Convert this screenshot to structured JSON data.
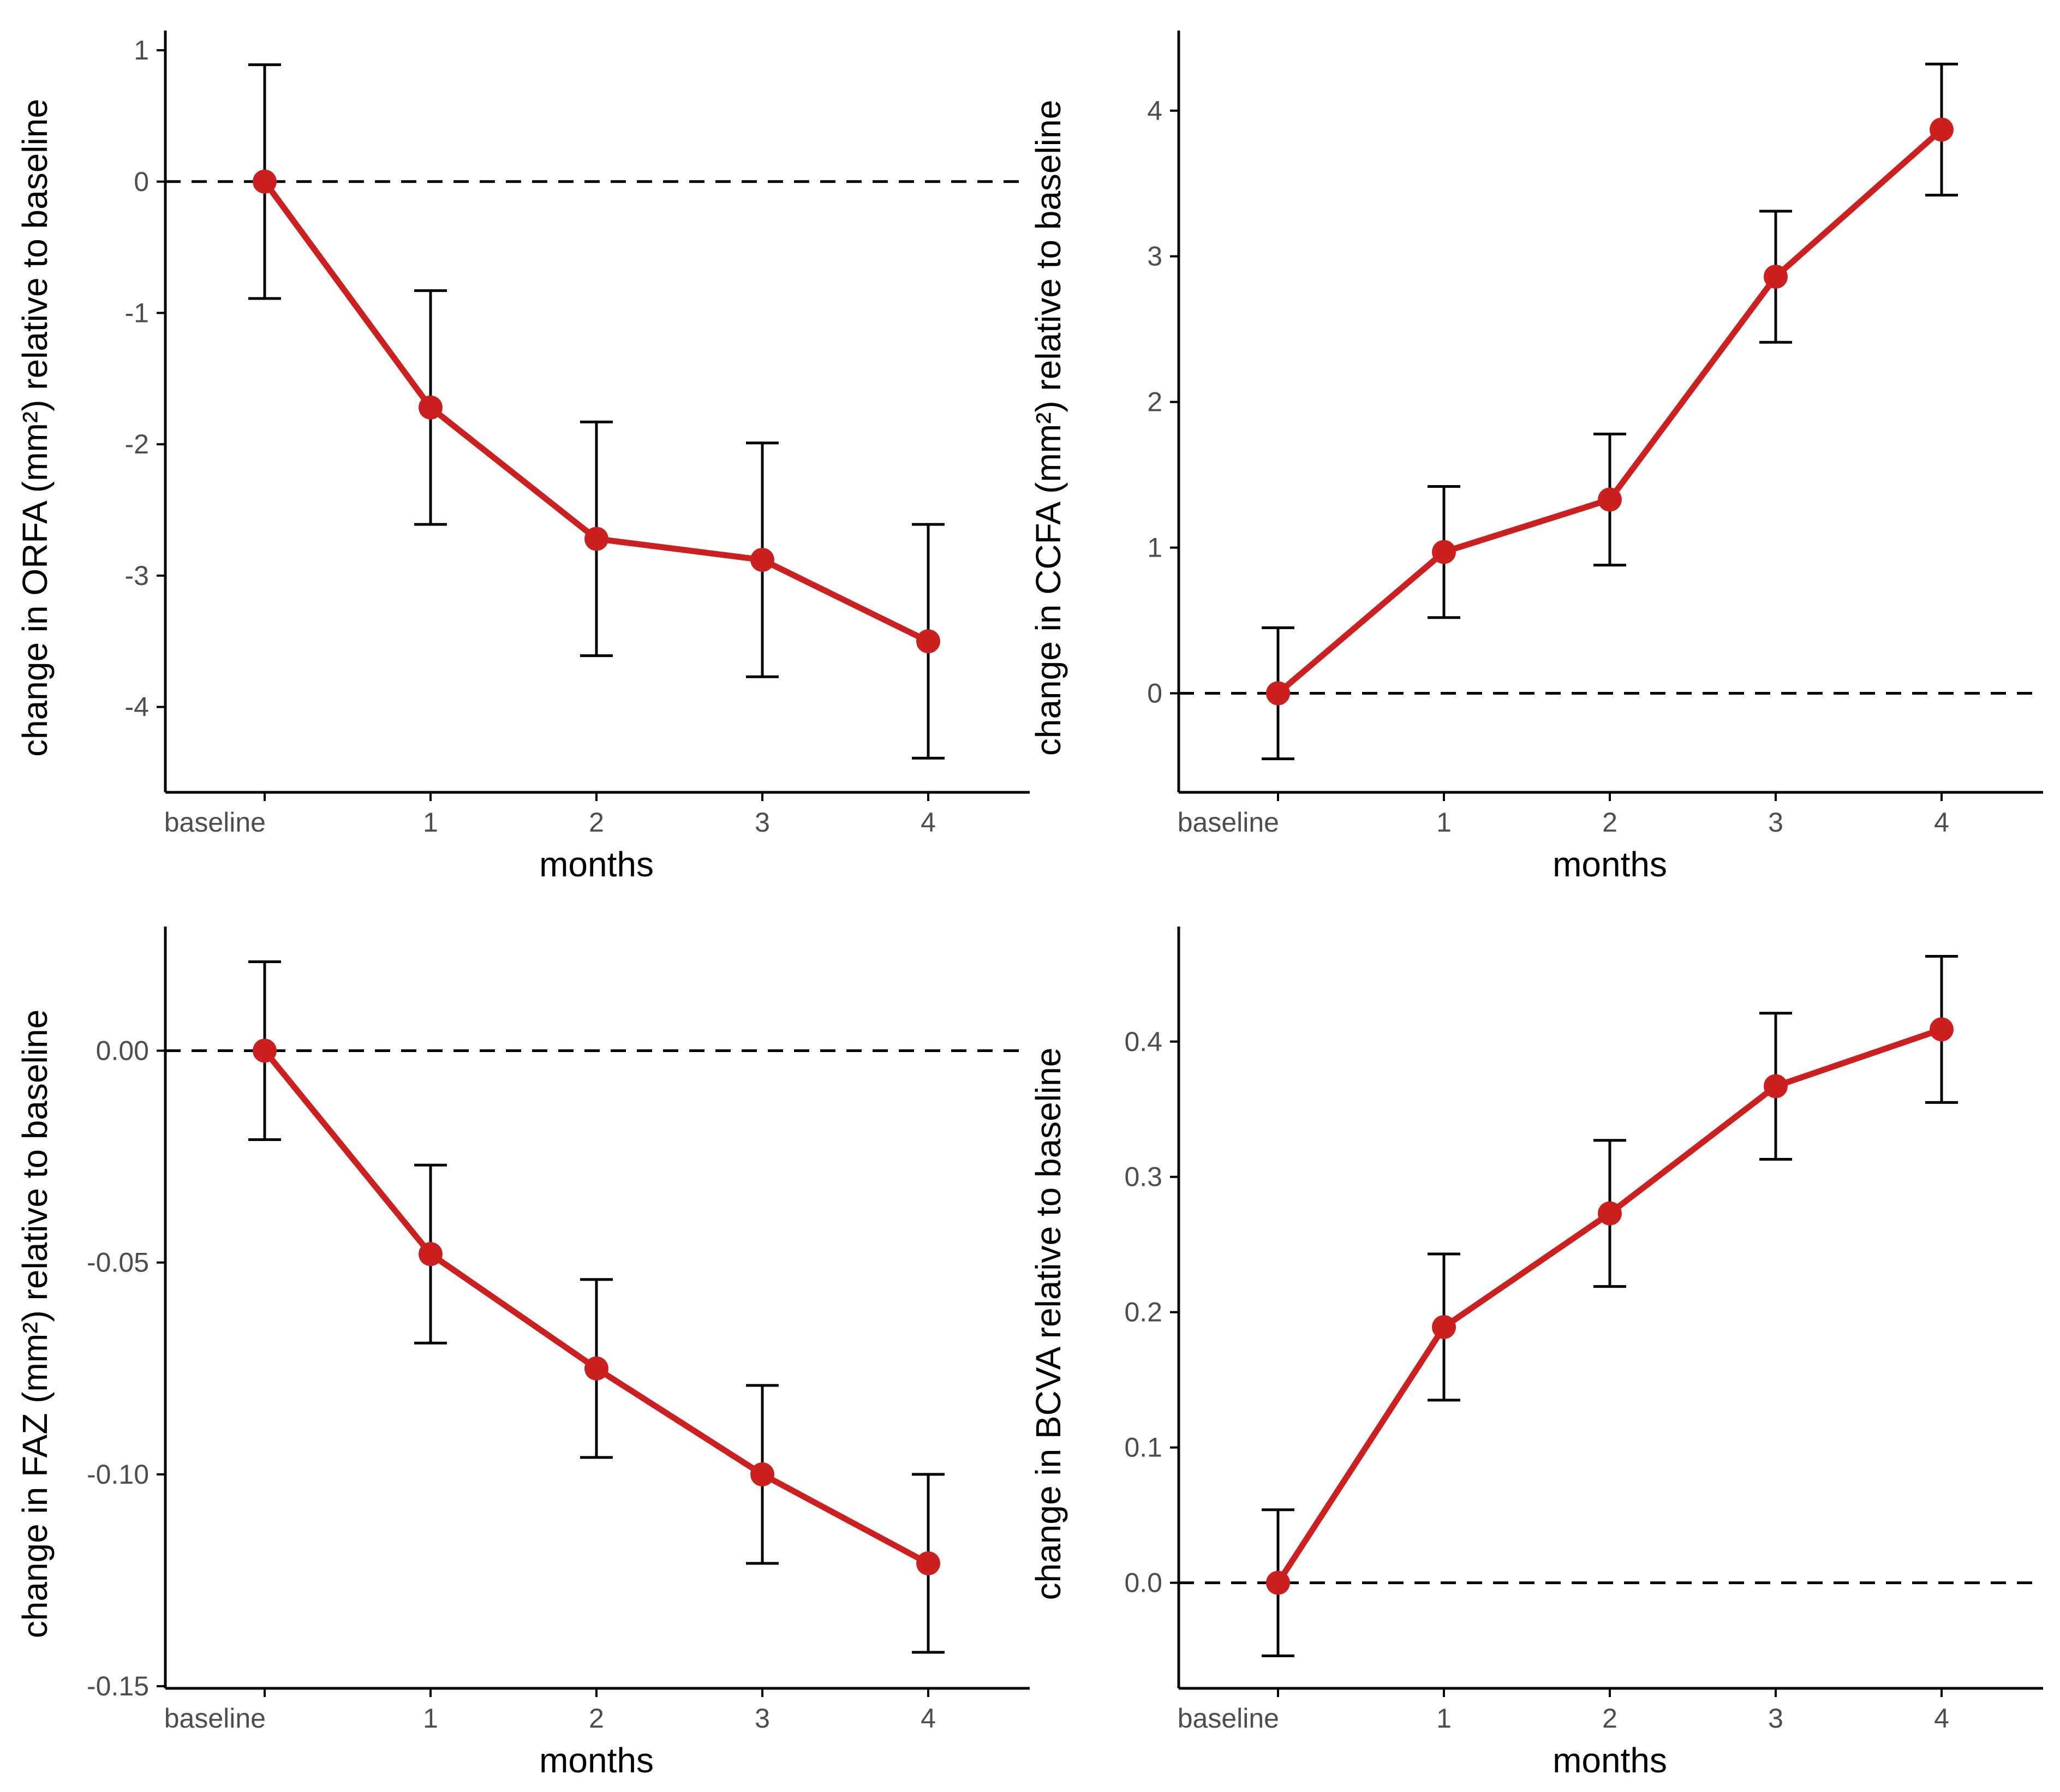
{
  "colors": {
    "line": "#cc1f1f",
    "point": "#cc1f1f",
    "errorbar": "#000000",
    "axis": "#000000",
    "reference": "#000000"
  },
  "chart_data": [
    {
      "type": "line",
      "xlabel": "months",
      "ylabel": "change in ORFA (mm²) relative to baseline",
      "categories": [
        "baseline",
        "1",
        "2",
        "3",
        "4"
      ],
      "ylim": [
        -4.65,
        1.15
      ],
      "yticks": [
        1,
        0,
        -1,
        -2,
        -3,
        -4
      ],
      "ytick_labels": [
        "1",
        "0",
        "-1",
        "-2",
        "-3",
        "-4"
      ],
      "reference_y": 0,
      "series": [
        {
          "name": "ORFA",
          "values": [
            0,
            -1.72,
            -2.72,
            -2.88,
            -3.5
          ],
          "lower": [
            -0.89,
            -2.61,
            -3.61,
            -3.77,
            -4.39
          ],
          "upper": [
            0.89,
            -0.83,
            -1.83,
            -1.99,
            -2.61
          ]
        }
      ]
    },
    {
      "type": "line",
      "xlabel": "months",
      "ylabel": "change in CCFA (mm²) relative to baseline",
      "categories": [
        "baseline",
        "1",
        "2",
        "3",
        "4"
      ],
      "ylim": [
        -0.68,
        4.55
      ],
      "yticks": [
        4,
        3,
        2,
        1,
        0
      ],
      "ytick_labels": [
        "4",
        "3",
        "2",
        "1",
        "0"
      ],
      "reference_y": 0,
      "series": [
        {
          "name": "CCFA",
          "values": [
            0,
            0.97,
            1.33,
            2.86,
            3.87
          ],
          "lower": [
            -0.45,
            0.52,
            0.88,
            2.41,
            3.42
          ],
          "upper": [
            0.45,
            1.42,
            1.78,
            3.31,
            4.32
          ]
        }
      ]
    },
    {
      "type": "line",
      "xlabel": "months",
      "ylabel": "change in FAZ (mm²) relative to baseline",
      "categories": [
        "baseline",
        "1",
        "2",
        "3",
        "4"
      ],
      "ylim": [
        -0.1505,
        0.0293
      ],
      "yticks": [
        0,
        -0.05,
        -0.1,
        -0.15
      ],
      "ytick_labels": [
        "0.00",
        "-0.05",
        "-0.10",
        "-0.15"
      ],
      "reference_y": 0,
      "series": [
        {
          "name": "FAZ",
          "values": [
            0,
            -0.048,
            -0.075,
            -0.1,
            -0.121
          ],
          "lower": [
            -0.021,
            -0.069,
            -0.096,
            -0.121,
            -0.142
          ],
          "upper": [
            0.021,
            -0.027,
            -0.054,
            -0.079,
            -0.1
          ]
        }
      ]
    },
    {
      "type": "line",
      "xlabel": "months",
      "ylabel": "change in BCVA relative to baseline",
      "categories": [
        "baseline",
        "1",
        "2",
        "3",
        "4"
      ],
      "ylim": [
        -0.078,
        0.485
      ],
      "yticks": [
        0.4,
        0.3,
        0.2,
        0.1,
        0
      ],
      "ytick_labels": [
        "0.4",
        "0.3",
        "0.2",
        "0.1",
        "0.0"
      ],
      "reference_y": 0,
      "series": [
        {
          "name": "BCVA",
          "values": [
            0,
            0.189,
            0.273,
            0.367,
            0.409
          ],
          "lower": [
            -0.054,
            0.135,
            0.219,
            0.313,
            0.355
          ],
          "upper": [
            0.054,
            0.243,
            0.327,
            0.421,
            0.463
          ]
        }
      ]
    }
  ]
}
